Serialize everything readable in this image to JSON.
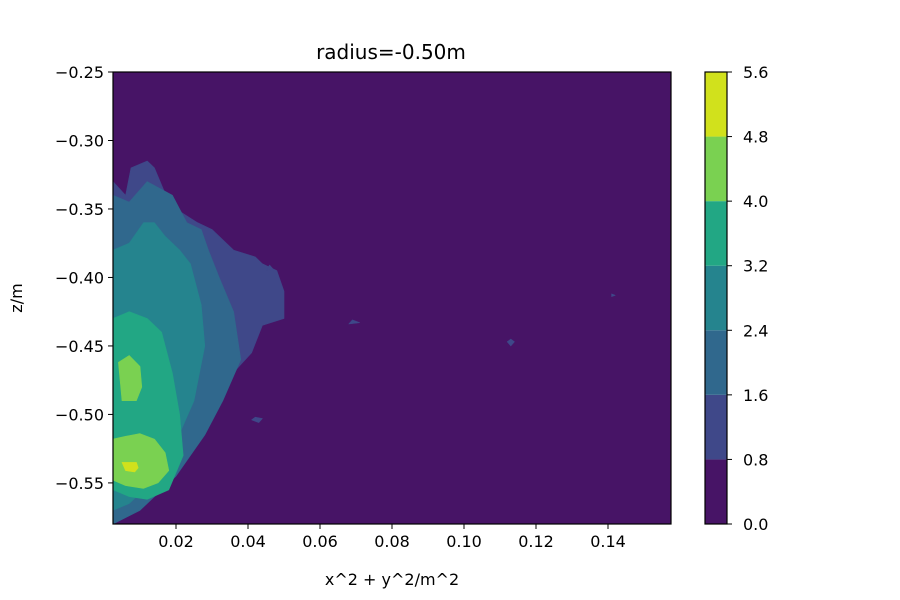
{
  "chart_data": {
    "type": "heatmap",
    "subtype": "filled-contour",
    "title": "radius=-0.50m",
    "xlabel": "x^2 + y^2/m^2",
    "ylabel": "z/m",
    "xlim": [
      0.0025,
      0.1575
    ],
    "ylim": [
      -0.58,
      -0.25
    ],
    "xticks": [
      "0.02",
      "0.04",
      "0.06",
      "0.08",
      "0.10",
      "0.12",
      "0.14"
    ],
    "yticks": [
      "−0.25",
      "−0.30",
      "−0.35",
      "−0.40",
      "−0.45",
      "−0.50",
      "−0.55"
    ],
    "grid": false,
    "colorbar": {
      "levels": [
        0.0,
        0.8,
        1.6,
        2.4,
        3.2,
        4.0,
        4.8,
        5.6
      ],
      "tick_labels": [
        "0.0",
        "0.8",
        "1.6",
        "2.4",
        "3.2",
        "4.0",
        "4.8",
        "5.6"
      ],
      "colors": [
        "#471466",
        "#3f4889",
        "#30688d",
        "#25848e",
        "#22a784",
        "#7ad151",
        "#d1e11c"
      ]
    },
    "region_fields": [
      "level_index",
      "x_values",
      "z_values"
    ],
    "regions": [
      [
        1,
        [
          0.0025,
          0.006,
          0.0075,
          0.012,
          0.014,
          0.018,
          0.02,
          0.026,
          0.03,
          0.034,
          0.036,
          0.042,
          0.044,
          0.048,
          0.05,
          0.05,
          0.044,
          0.041,
          0.034,
          0.027,
          0.016,
          0.006,
          0.0025
        ],
        [
          -0.33,
          -0.34,
          -0.32,
          -0.315,
          -0.32,
          -0.345,
          -0.35,
          -0.36,
          -0.365,
          -0.375,
          -0.38,
          -0.385,
          -0.39,
          -0.395,
          -0.41,
          -0.43,
          -0.435,
          -0.455,
          -0.475,
          -0.5,
          -0.54,
          -0.575,
          -0.58
        ]
      ],
      [
        2,
        [
          0.0025,
          0.007,
          0.012,
          0.019,
          0.023,
          0.027,
          0.029,
          0.032,
          0.036,
          0.038,
          0.033,
          0.028,
          0.02,
          0.01,
          0.0025
        ],
        [
          -0.34,
          -0.345,
          -0.33,
          -0.34,
          -0.36,
          -0.365,
          -0.38,
          -0.4,
          -0.425,
          -0.46,
          -0.49,
          -0.515,
          -0.545,
          -0.57,
          -0.58
        ]
      ],
      [
        3,
        [
          0.0025,
          0.007,
          0.011,
          0.014,
          0.017,
          0.021,
          0.024,
          0.027,
          0.028,
          0.025,
          0.02,
          0.013,
          0.007,
          0.0025
        ],
        [
          -0.38,
          -0.375,
          -0.36,
          -0.36,
          -0.37,
          -0.38,
          -0.39,
          -0.42,
          -0.45,
          -0.49,
          -0.52,
          -0.55,
          -0.565,
          -0.57
        ]
      ],
      [
        4,
        [
          0.0025,
          0.007,
          0.012,
          0.016,
          0.019,
          0.021,
          0.022,
          0.018,
          0.012,
          0.007,
          0.0025
        ],
        [
          -0.43,
          -0.425,
          -0.43,
          -0.44,
          -0.47,
          -0.5,
          -0.53,
          -0.555,
          -0.562,
          -0.56,
          -0.555
        ]
      ],
      [
        5,
        [
          0.004,
          0.007,
          0.01,
          0.0105,
          0.009,
          0.005
        ],
        [
          -0.462,
          -0.457,
          -0.465,
          -0.48,
          -0.49,
          -0.49
        ]
      ],
      [
        5,
        [
          0.0025,
          0.006,
          0.01,
          0.014,
          0.017,
          0.018,
          0.015,
          0.011,
          0.006,
          0.0025
        ],
        [
          -0.518,
          -0.516,
          -0.514,
          -0.518,
          -0.528,
          -0.541,
          -0.55,
          -0.554,
          -0.552,
          -0.548
        ]
      ],
      [
        6,
        [
          0.005,
          0.009,
          0.0095,
          0.0085,
          0.006
        ],
        [
          -0.535,
          -0.535,
          -0.539,
          -0.542,
          -0.541
        ]
      ],
      [
        1,
        [
          0.069,
          0.071,
          0.068
        ],
        [
          -0.431,
          -0.433,
          -0.434
        ]
      ],
      [
        1,
        [
          0.113,
          0.114,
          0.113,
          0.112
        ],
        [
          -0.445,
          -0.447,
          -0.45,
          -0.447
        ]
      ],
      [
        1,
        [
          0.141,
          0.142,
          0.141
        ],
        [
          -0.412,
          -0.413,
          -0.414
        ]
      ],
      [
        1,
        [
          0.046,
          0.047,
          0.045
        ],
        [
          -0.391,
          -0.394,
          -0.395
        ]
      ],
      [
        1,
        [
          0.042,
          0.044,
          0.043,
          0.041
        ],
        [
          -0.502,
          -0.503,
          -0.506,
          -0.504
        ]
      ]
    ]
  }
}
